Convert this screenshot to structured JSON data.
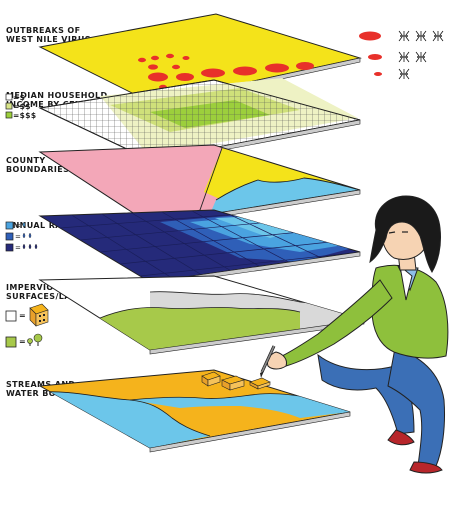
{
  "layers": [
    {
      "id": "outbreaks",
      "label_lines": [
        "OUTBREAKS OF",
        "WEST NILE VIRUS"
      ],
      "color": "#f4e31a"
    },
    {
      "id": "income",
      "label_lines": [
        "MEDIAN HOUSEHOLD",
        "INCOME BY CENSUS"
      ],
      "color": "#ffffff",
      "legend": [
        "=$",
        "=$$",
        "=$$$"
      ],
      "legend_colors": [
        "#ffffff",
        "#d9e58a",
        "#9ccf3c"
      ]
    },
    {
      "id": "county",
      "label_lines": [
        "COUNTY",
        "BOUNDARIES"
      ],
      "colors": [
        "#f3a7b8",
        "#f4e31a",
        "#6cc6ea"
      ]
    },
    {
      "id": "rainfall",
      "label_lines": [
        "ANNUAL RAINFALL"
      ],
      "legend_colors": [
        "#4aa3e0",
        "#2f5fb8",
        "#252a7a"
      ]
    },
    {
      "id": "impervious",
      "label_lines": [
        "IMPERVIOUS",
        "SURFACES/LAND COVER"
      ],
      "colors": [
        "#ffffff",
        "#d9d9d9",
        "#a7c94a"
      ]
    },
    {
      "id": "streams",
      "label_lines": [
        "STREAMS AND",
        "WATER BODIES"
      ],
      "colors": [
        "#f5b31c",
        "#6cc6ea"
      ]
    }
  ],
  "impervious_legend": [
    "=",
    "="
  ],
  "mosquito_legend": {
    "dot_color": "#e8302a",
    "counts": [
      3,
      2,
      1
    ]
  },
  "icons": [
    "mosquito-icon",
    "raindrop-icon",
    "building-icon",
    "tree-icon",
    "person-illustration",
    "pen-icon"
  ]
}
